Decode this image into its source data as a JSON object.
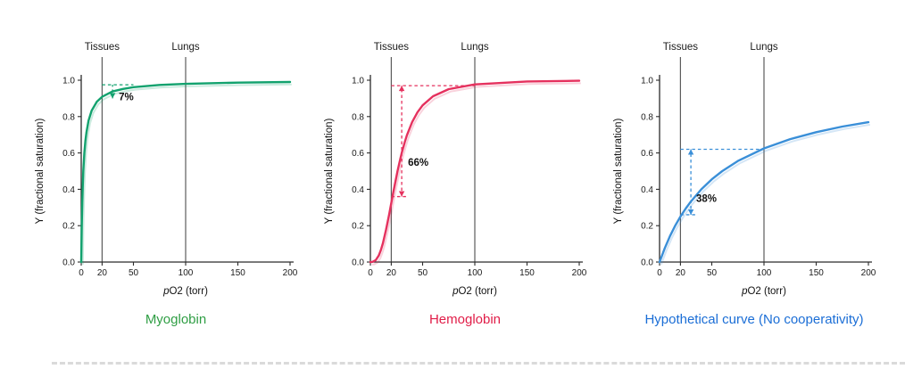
{
  "chart_data": [
    {
      "type": "line",
      "key": "myoglobin",
      "title": "Myoglobin",
      "curve_color": "#12a26e",
      "title_color": "#2f9e44",
      "xlabel": "pO2 (torr)",
      "ylabel": "Y (fractional saturation)",
      "xlim": [
        0,
        200
      ],
      "ylim": [
        0,
        1.0
      ],
      "x_ticks": [
        0,
        20,
        50,
        100,
        150,
        200
      ],
      "y_ticks": [
        "0.0",
        "0.2",
        "0.4",
        "0.6",
        "0.8",
        "1.0"
      ],
      "ref_lines": [
        {
          "x": 20,
          "label": "Tissues"
        },
        {
          "x": 100,
          "label": "Lungs"
        }
      ],
      "x": [
        0,
        0.5,
        1,
        1.5,
        2,
        3,
        4,
        5,
        7,
        10,
        15,
        20,
        30,
        40,
        50,
        75,
        100,
        150,
        200
      ],
      "y": [
        0,
        0.2,
        0.33,
        0.43,
        0.5,
        0.6,
        0.667,
        0.714,
        0.778,
        0.833,
        0.882,
        0.909,
        0.938,
        0.952,
        0.962,
        0.974,
        0.98,
        0.987,
        0.99
      ],
      "annotation": {
        "label": "7%",
        "arrow_x": 30,
        "y_low": 0.9,
        "y_high": 0.975,
        "arrows": "down",
        "top_hline": {
          "y": 0.975,
          "x1": 20,
          "x2": 50
        },
        "bottom_hline": null,
        "label_x": 36,
        "label_y": 0.89
      }
    },
    {
      "type": "line",
      "key": "hemoglobin",
      "title": "Hemoglobin",
      "curve_color": "#e5315e",
      "title_color": "#e11d48",
      "xlabel": "pO2 (torr)",
      "ylabel": "Y (fractional saturation)",
      "xlim": [
        0,
        200
      ],
      "ylim": [
        0,
        1.0
      ],
      "x_ticks": [
        0,
        20,
        50,
        100,
        150,
        200
      ],
      "y_ticks": [
        "0.0",
        "0.2",
        "0.4",
        "0.6",
        "0.8",
        "1.0"
      ],
      "ref_lines": [
        {
          "x": 20,
          "label": "Tissues"
        },
        {
          "x": 100,
          "label": "Lungs"
        }
      ],
      "x": [
        0,
        2,
        5,
        8,
        10,
        12,
        15,
        18,
        20,
        22,
        25,
        26,
        28,
        30,
        33,
        35,
        40,
        45,
        50,
        60,
        75,
        100,
        150,
        200
      ],
      "y": [
        0,
        0.001,
        0.01,
        0.036,
        0.065,
        0.103,
        0.177,
        0.263,
        0.324,
        0.385,
        0.473,
        0.5,
        0.552,
        0.6,
        0.661,
        0.697,
        0.77,
        0.823,
        0.862,
        0.912,
        0.951,
        0.977,
        0.993,
        0.997
      ],
      "annotation": {
        "label": "66%",
        "arrow_x": 30,
        "y_low": 0.36,
        "y_high": 0.97,
        "arrows": "both",
        "top_hline": {
          "y": 0.97,
          "x1": 20,
          "x2": 100
        },
        "bottom_hline": {
          "y": 0.36,
          "x1": 20,
          "x2": 36
        },
        "label_x": 36,
        "label_y": 0.53
      }
    },
    {
      "type": "line",
      "key": "hypothetical",
      "title": "Hypothetical curve (No cooperativity)",
      "curve_color": "#3a8fd8",
      "title_color": "#1b6ed6",
      "xlabel": "pO2 (torr)",
      "ylabel": "Y (fractional saturation)",
      "xlim": [
        0,
        200
      ],
      "ylim": [
        0,
        1.0
      ],
      "x_ticks": [
        0,
        20,
        50,
        100,
        150,
        200
      ],
      "y_ticks": [
        "0.0",
        "0.2",
        "0.4",
        "0.6",
        "0.8",
        "1.0"
      ],
      "ref_lines": [
        {
          "x": 20,
          "label": "Tissues"
        },
        {
          "x": 100,
          "label": "Lungs"
        }
      ],
      "x": [
        0,
        5,
        10,
        15,
        20,
        25,
        30,
        40,
        50,
        60,
        75,
        100,
        125,
        150,
        175,
        200
      ],
      "y": [
        0,
        0.077,
        0.143,
        0.2,
        0.25,
        0.294,
        0.333,
        0.4,
        0.455,
        0.5,
        0.556,
        0.625,
        0.676,
        0.714,
        0.745,
        0.769
      ],
      "annotation": {
        "label": "38%",
        "arrow_x": 30,
        "y_low": 0.26,
        "y_high": 0.62,
        "arrows": "both",
        "top_hline": {
          "y": 0.62,
          "x1": 20,
          "x2": 100
        },
        "bottom_hline": {
          "y": 0.26,
          "x1": 20,
          "x2": 36
        },
        "label_x": 35,
        "label_y": 0.33
      }
    }
  ]
}
